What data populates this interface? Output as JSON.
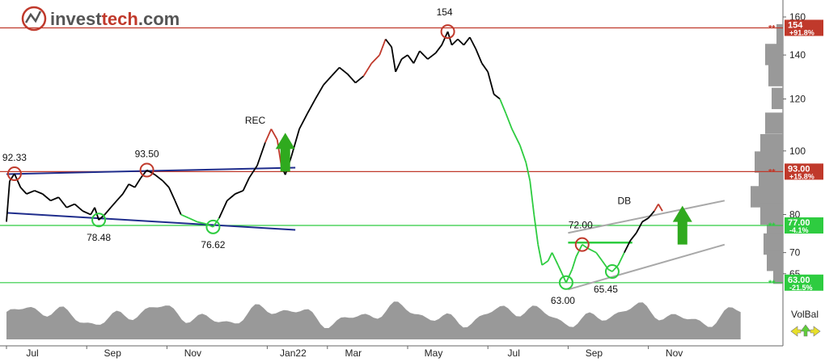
{
  "logo": {
    "brand": "investtech.com",
    "part1": "invest",
    "part2": "tech",
    "part3": ".com"
  },
  "chart_data": {
    "type": "line",
    "y_scale": "log",
    "ylim": [
      60,
      166
    ],
    "y_ticks": [
      65,
      70,
      80,
      100,
      120,
      140,
      160
    ],
    "x_tick_labels": [
      "Jul",
      "Sep",
      "Nov",
      "Jan22",
      "Mar",
      "May",
      "Jul",
      "Sep",
      "Nov"
    ],
    "x_ticks_month_index": [
      0,
      2,
      4,
      6.5,
      8,
      10,
      12,
      14,
      16
    ],
    "series": [
      {
        "points": [
          [
            0,
            78
          ],
          [
            0.08,
            90
          ],
          [
            0.2,
            92.3
          ],
          [
            0.35,
            88
          ],
          [
            0.5,
            86
          ],
          [
            0.7,
            87
          ],
          [
            0.9,
            86
          ],
          [
            1.1,
            84
          ],
          [
            1.3,
            85
          ],
          [
            1.5,
            82
          ],
          [
            1.7,
            83
          ],
          [
            1.9,
            81
          ],
          [
            2.1,
            80
          ],
          [
            2.2,
            82
          ],
          [
            2.3,
            78.5
          ],
          [
            2.45,
            80
          ],
          [
            2.6,
            82
          ],
          [
            2.75,
            84
          ],
          [
            2.9,
            86
          ],
          [
            3.05,
            89
          ],
          [
            3.2,
            88
          ],
          [
            3.35,
            91
          ],
          [
            3.5,
            93.5
          ],
          [
            3.7,
            92
          ],
          [
            3.9,
            90
          ],
          [
            4.05,
            88
          ],
          [
            4.2,
            84
          ],
          [
            4.35,
            80
          ],
          [
            4.55,
            79
          ],
          [
            4.75,
            78
          ],
          [
            4.95,
            77.5
          ],
          [
            5.15,
            76.6
          ],
          [
            5.3,
            79
          ],
          [
            5.5,
            84
          ],
          [
            5.7,
            86
          ],
          [
            5.9,
            87
          ],
          [
            6.05,
            91
          ],
          [
            6.25,
            95
          ],
          [
            6.45,
            103
          ],
          [
            6.6,
            108
          ],
          [
            6.75,
            104
          ],
          [
            6.85,
            95
          ],
          [
            6.95,
            92
          ],
          [
            7.1,
            98
          ],
          [
            7.3,
            108
          ],
          [
            7.5,
            114
          ],
          [
            7.7,
            120
          ],
          [
            7.9,
            126
          ],
          [
            8.1,
            130
          ],
          [
            8.3,
            134
          ],
          [
            8.5,
            131
          ],
          [
            8.7,
            127
          ],
          [
            8.9,
            130
          ],
          [
            9.1,
            136
          ],
          [
            9.3,
            140
          ],
          [
            9.45,
            148
          ],
          [
            9.6,
            144
          ],
          [
            9.7,
            132
          ],
          [
            9.85,
            138
          ],
          [
            10.0,
            140
          ],
          [
            10.15,
            136
          ],
          [
            10.3,
            142
          ],
          [
            10.5,
            138
          ],
          [
            10.7,
            141
          ],
          [
            10.85,
            145
          ],
          [
            11.0,
            152
          ],
          [
            11.1,
            145
          ],
          [
            11.25,
            148
          ],
          [
            11.4,
            145
          ],
          [
            11.55,
            149
          ],
          [
            11.7,
            143
          ],
          [
            11.85,
            136
          ],
          [
            12.0,
            132
          ],
          [
            12.15,
            122
          ],
          [
            12.3,
            120
          ],
          [
            12.45,
            114
          ],
          [
            12.6,
            108
          ],
          [
            12.8,
            102
          ],
          [
            12.95,
            96
          ],
          [
            13.05,
            90
          ],
          [
            13.15,
            80
          ],
          [
            13.25,
            72
          ],
          [
            13.35,
            67
          ],
          [
            13.5,
            68
          ],
          [
            13.6,
            70
          ],
          [
            13.75,
            67
          ],
          [
            13.85,
            65
          ],
          [
            13.95,
            63
          ],
          [
            14.1,
            66
          ],
          [
            14.2,
            69
          ],
          [
            14.35,
            72
          ],
          [
            14.5,
            71
          ],
          [
            14.7,
            70
          ],
          [
            14.85,
            68
          ],
          [
            15.0,
            66
          ],
          [
            15.1,
            65.5
          ],
          [
            15.25,
            67
          ],
          [
            15.4,
            70
          ],
          [
            15.55,
            73
          ],
          [
            15.7,
            75
          ],
          [
            15.85,
            78
          ],
          [
            16.0,
            79
          ],
          [
            16.15,
            81
          ],
          [
            16.25,
            83
          ],
          [
            16.35,
            81
          ]
        ]
      }
    ],
    "horizontal_lines": [
      {
        "value": 154,
        "color": "#c0392b",
        "label": "154",
        "pct": "+91.8%"
      },
      {
        "value": 93,
        "color": "#c0392b",
        "label": "93.00",
        "pct": "+15.8%"
      },
      {
        "value": 77,
        "color": "#2ecc40",
        "label": "77.00",
        "pct": "-4.1%"
      },
      {
        "value": 63,
        "color": "#2ecc40",
        "label": "63.00",
        "pct": "-21.5%"
      }
    ],
    "annotations": [
      {
        "text": "92.33",
        "x": 0.2,
        "y": 92.3
      },
      {
        "text": "78.48",
        "x": 2.3,
        "y": 78.5
      },
      {
        "text": "93.50",
        "x": 3.5,
        "y": 93.5
      },
      {
        "text": "76.62",
        "x": 5.15,
        "y": 76.6
      },
      {
        "text": "154",
        "x": 11.0,
        "y": 152
      },
      {
        "text": "72.00",
        "x": 14.35,
        "y": 72
      },
      {
        "text": "63.00",
        "x": 13.95,
        "y": 63
      },
      {
        "text": "65.45",
        "x": 15.1,
        "y": 65.5
      },
      {
        "text": "REC",
        "x": 6.2,
        "y": 110
      },
      {
        "text": "DB",
        "x": 15.4,
        "y": 83
      }
    ],
    "volume_label": "VolBal"
  },
  "colors": {
    "up": "#c0392b",
    "down": "#2ecc40",
    "neutral": "#000000",
    "volume": "#999999",
    "trend": "#1f2d8c",
    "channel": "#a8a8a8"
  }
}
